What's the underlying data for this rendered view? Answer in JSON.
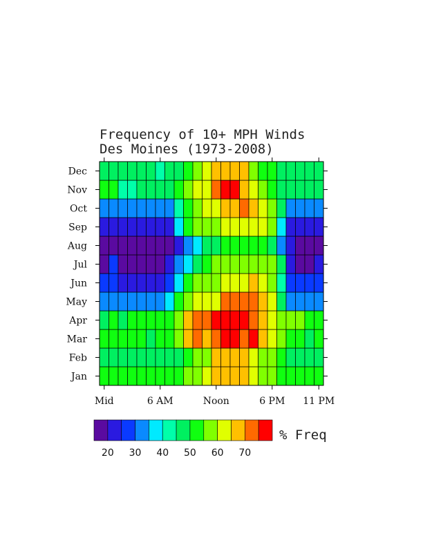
{
  "chart_data": {
    "type": "heatmap",
    "title": "Frequency of 10+ MPH Winds",
    "subtitle": "Des Moines (1973-2008)",
    "y_categories": [
      "Jan",
      "Feb",
      "Mar",
      "Apr",
      "May",
      "Jun",
      "Jul",
      "Aug",
      "Sep",
      "Oct",
      "Nov",
      "Dec"
    ],
    "x_hours": [
      0,
      1,
      2,
      3,
      4,
      5,
      6,
      7,
      8,
      9,
      10,
      11,
      12,
      13,
      14,
      15,
      16,
      17,
      18,
      19,
      20,
      21,
      22,
      23
    ],
    "x_tick_labels": [
      {
        "hour": 0,
        "label": "Mid"
      },
      {
        "hour": 6,
        "label": "6 AM"
      },
      {
        "hour": 12,
        "label": "Noon"
      },
      {
        "hour": 18,
        "label": "6 PM"
      },
      {
        "hour": 23,
        "label": "11 PM"
      }
    ],
    "colorbar": {
      "label": "% Freq",
      "min": 15,
      "max": 80,
      "tick_values": [
        20,
        30,
        40,
        50,
        60,
        70
      ],
      "colors": [
        "#5a0aa0",
        "#2a1ae0",
        "#0a3aff",
        "#0a8aff",
        "#00eaff",
        "#00ffaa",
        "#00f060",
        "#10ff10",
        "#80ff00",
        "#e0ff00",
        "#ffc000",
        "#ff6a00",
        "#ff0000"
      ]
    },
    "values": [
      [
        52,
        52,
        52,
        52,
        52,
        50,
        52,
        52,
        52,
        55,
        58,
        60,
        68,
        68,
        68,
        68,
        63,
        55,
        55,
        52,
        52,
        52,
        52,
        50
      ],
      [
        48,
        48,
        48,
        48,
        48,
        46,
        48,
        48,
        48,
        52,
        55,
        58,
        66,
        68,
        68,
        68,
        64,
        55,
        55,
        52,
        48,
        48,
        48,
        45
      ],
      [
        52,
        52,
        52,
        52,
        52,
        48,
        52,
        52,
        55,
        65,
        70,
        65,
        72,
        75,
        80,
        72,
        80,
        68,
        60,
        55,
        52,
        52,
        48,
        52
      ],
      [
        45,
        52,
        48,
        52,
        52,
        52,
        52,
        52,
        55,
        68,
        72,
        72,
        80,
        80,
        80,
        80,
        72,
        68,
        60,
        55,
        55,
        55,
        52,
        52
      ],
      [
        33,
        33,
        33,
        33,
        33,
        33,
        33,
        38,
        52,
        55,
        62,
        62,
        62,
        72,
        72,
        72,
        72,
        65,
        60,
        45,
        33,
        33,
        33,
        33
      ],
      [
        28,
        28,
        23,
        23,
        23,
        23,
        23,
        28,
        38,
        52,
        55,
        58,
        58,
        62,
        62,
        62,
        68,
        62,
        58,
        40,
        28,
        28,
        28,
        28
      ],
      [
        18,
        28,
        18,
        18,
        18,
        18,
        18,
        23,
        33,
        38,
        48,
        52,
        55,
        58,
        58,
        58,
        58,
        58,
        55,
        48,
        23,
        18,
        18,
        23
      ],
      [
        18,
        18,
        18,
        18,
        18,
        18,
        18,
        18,
        23,
        33,
        38,
        45,
        45,
        52,
        52,
        52,
        52,
        52,
        45,
        33,
        23,
        18,
        18,
        18
      ],
      [
        23,
        23,
        23,
        23,
        23,
        23,
        23,
        23,
        38,
        52,
        55,
        55,
        55,
        62,
        62,
        62,
        62,
        62,
        55,
        38,
        23,
        23,
        23,
        23
      ],
      [
        33,
        33,
        33,
        33,
        33,
        33,
        33,
        33,
        40,
        52,
        58,
        62,
        62,
        68,
        68,
        72,
        68,
        62,
        55,
        45,
        33,
        33,
        33,
        33
      ],
      [
        50,
        50,
        40,
        40,
        45,
        48,
        45,
        45,
        52,
        58,
        62,
        62,
        72,
        75,
        75,
        68,
        62,
        55,
        50,
        48,
        48,
        48,
        48,
        48
      ],
      [
        48,
        48,
        48,
        48,
        48,
        48,
        42,
        48,
        48,
        52,
        58,
        62,
        68,
        68,
        68,
        65,
        58,
        52,
        52,
        48,
        48,
        48,
        48,
        48
      ]
    ]
  }
}
